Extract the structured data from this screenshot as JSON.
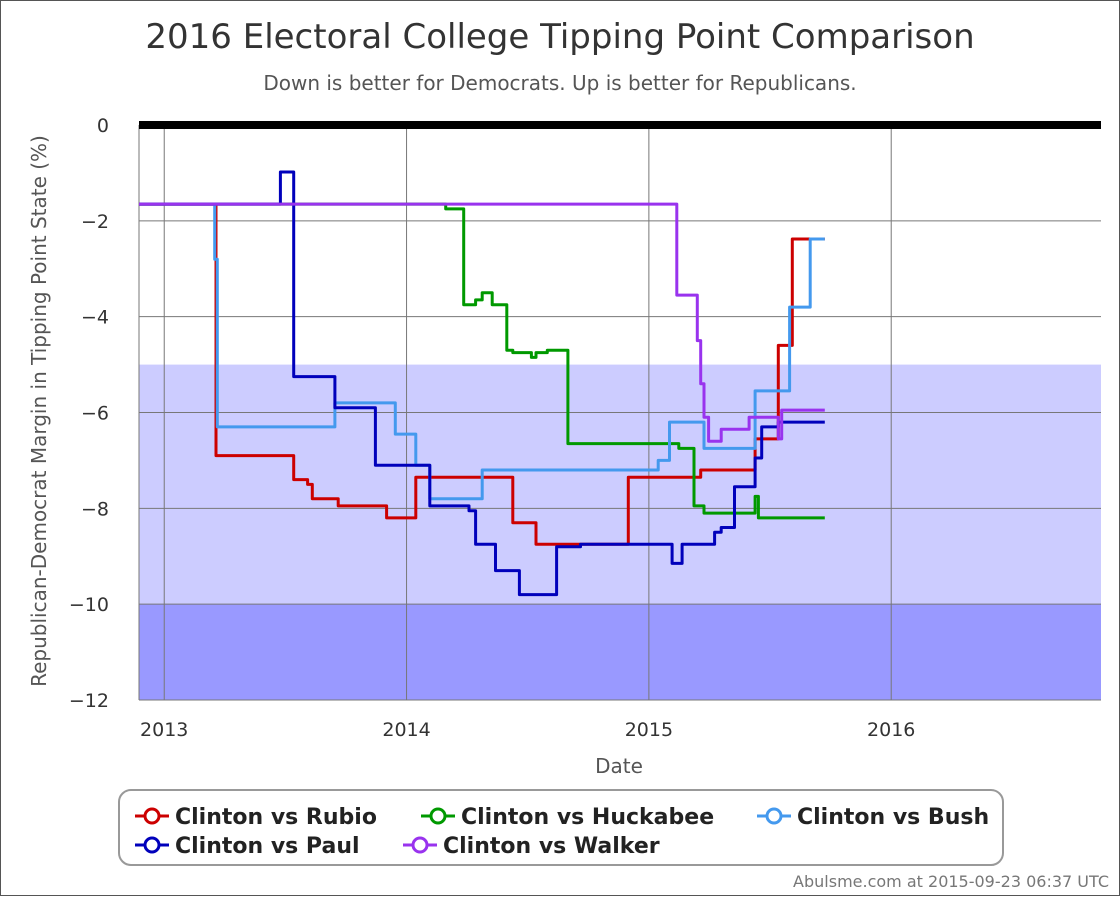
{
  "chart_data": {
    "type": "line",
    "title": "2016 Electoral College Tipping Point Comparison",
    "subtitle": "Down is better for Democrats. Up is better for Republicans.",
    "xlabel": "Date",
    "ylabel": "Republican-Democrat Margin in Tipping Point State (%)",
    "xlim": [
      "2012-11-24",
      "2016-11-12"
    ],
    "ylim": [
      -12,
      0
    ],
    "x_ticks": [
      "2013",
      "2014",
      "2015",
      "2016"
    ],
    "x_tick_dates": [
      "2013-01-01",
      "2014-01-01",
      "2015-01-01",
      "2016-01-01"
    ],
    "y_ticks": [
      0,
      -2,
      -4,
      -6,
      -8,
      -10,
      -12
    ],
    "y_tick_labels": [
      "0",
      "−2",
      "−4",
      "−6",
      "−8",
      "−10",
      "−12"
    ],
    "bands": [
      {
        "from": -5,
        "to": -10,
        "color": "#ccccff"
      },
      {
        "from": -10,
        "to": -12,
        "color": "#9999ff"
      }
    ],
    "zero_line_color": "#000000",
    "grid": true,
    "legend_position": "bottom",
    "step": true,
    "series": [
      {
        "name": "Clinton vs Rubio",
        "color": "#cc0000",
        "points": [
          [
            "2012-11-24",
            -1.65
          ],
          [
            "2013-03-20",
            -1.65
          ],
          [
            "2013-03-20",
            -6.9
          ],
          [
            "2013-07-15",
            -6.9
          ],
          [
            "2013-07-15",
            -7.4
          ],
          [
            "2013-08-05",
            -7.4
          ],
          [
            "2013-08-05",
            -7.5
          ],
          [
            "2013-08-12",
            -7.5
          ],
          [
            "2013-08-12",
            -7.8
          ],
          [
            "2013-09-20",
            -7.8
          ],
          [
            "2013-09-20",
            -7.95
          ],
          [
            "2013-12-02",
            -7.95
          ],
          [
            "2013-12-02",
            -8.2
          ],
          [
            "2014-01-15",
            -8.2
          ],
          [
            "2014-01-15",
            -7.35
          ],
          [
            "2014-06-10",
            -7.35
          ],
          [
            "2014-06-10",
            -8.3
          ],
          [
            "2014-07-15",
            -8.3
          ],
          [
            "2014-07-15",
            -8.75
          ],
          [
            "2014-12-01",
            -8.75
          ],
          [
            "2014-12-01",
            -7.35
          ],
          [
            "2015-03-20",
            -7.35
          ],
          [
            "2015-03-20",
            -7.2
          ],
          [
            "2015-06-10",
            -7.2
          ],
          [
            "2015-06-10",
            -6.55
          ],
          [
            "2015-07-15",
            -6.55
          ],
          [
            "2015-07-15",
            -4.6
          ],
          [
            "2015-08-05",
            -4.6
          ],
          [
            "2015-08-05",
            -2.38
          ],
          [
            "2015-09-23",
            -2.38
          ]
        ]
      },
      {
        "name": "Clinton vs Huckabee",
        "color": "#009900",
        "points": [
          [
            "2012-11-24",
            -1.65
          ],
          [
            "2014-03-01",
            -1.65
          ],
          [
            "2014-03-01",
            -1.75
          ],
          [
            "2014-03-28",
            -1.75
          ],
          [
            "2014-03-28",
            -3.75
          ],
          [
            "2014-04-15",
            -3.75
          ],
          [
            "2014-04-15",
            -3.65
          ],
          [
            "2014-04-25",
            -3.65
          ],
          [
            "2014-04-25",
            -3.5
          ],
          [
            "2014-05-10",
            -3.5
          ],
          [
            "2014-05-10",
            -3.75
          ],
          [
            "2014-06-01",
            -3.75
          ],
          [
            "2014-06-01",
            -4.7
          ],
          [
            "2014-06-10",
            -4.7
          ],
          [
            "2014-06-10",
            -4.75
          ],
          [
            "2014-07-08",
            -4.75
          ],
          [
            "2014-07-08",
            -4.85
          ],
          [
            "2014-07-15",
            -4.85
          ],
          [
            "2014-07-15",
            -4.75
          ],
          [
            "2014-08-01",
            -4.75
          ],
          [
            "2014-08-01",
            -4.7
          ],
          [
            "2014-09-01",
            -4.7
          ],
          [
            "2014-09-01",
            -6.65
          ],
          [
            "2015-02-15",
            -6.65
          ],
          [
            "2015-02-15",
            -6.75
          ],
          [
            "2015-03-10",
            -6.75
          ],
          [
            "2015-03-10",
            -7.95
          ],
          [
            "2015-03-25",
            -7.95
          ],
          [
            "2015-03-25",
            -8.1
          ],
          [
            "2015-06-10",
            -8.1
          ],
          [
            "2015-06-10",
            -7.75
          ],
          [
            "2015-06-15",
            -7.75
          ],
          [
            "2015-06-15",
            -8.2
          ],
          [
            "2015-09-23",
            -8.2
          ]
        ]
      },
      {
        "name": "Clinton vs Bush",
        "color": "#4499ee",
        "points": [
          [
            "2012-11-24",
            -1.65
          ],
          [
            "2013-03-18",
            -1.65
          ],
          [
            "2013-03-18",
            -2.8
          ],
          [
            "2013-03-22",
            -2.8
          ],
          [
            "2013-03-22",
            -6.3
          ],
          [
            "2013-09-15",
            -6.3
          ],
          [
            "2013-09-15",
            -5.8
          ],
          [
            "2013-12-15",
            -5.8
          ],
          [
            "2013-12-15",
            -6.45
          ],
          [
            "2014-01-15",
            -6.45
          ],
          [
            "2014-01-15",
            -7.1
          ],
          [
            "2014-02-05",
            -7.1
          ],
          [
            "2014-02-05",
            -7.8
          ],
          [
            "2014-04-25",
            -7.8
          ],
          [
            "2014-04-25",
            -7.2
          ],
          [
            "2015-01-15",
            -7.2
          ],
          [
            "2015-01-15",
            -7.0
          ],
          [
            "2015-02-01",
            -7.0
          ],
          [
            "2015-02-01",
            -6.2
          ],
          [
            "2015-03-25",
            -6.2
          ],
          [
            "2015-03-25",
            -6.75
          ],
          [
            "2015-06-10",
            -6.75
          ],
          [
            "2015-06-10",
            -5.55
          ],
          [
            "2015-08-01",
            -5.55
          ],
          [
            "2015-08-01",
            -3.8
          ],
          [
            "2015-09-01",
            -3.8
          ],
          [
            "2015-09-01",
            -2.38
          ],
          [
            "2015-09-23",
            -2.38
          ]
        ]
      },
      {
        "name": "Clinton vs Paul",
        "color": "#0000bb",
        "points": [
          [
            "2012-11-24",
            -1.65
          ],
          [
            "2013-06-25",
            -1.65
          ],
          [
            "2013-06-25",
            -0.98
          ],
          [
            "2013-07-15",
            -0.98
          ],
          [
            "2013-07-15",
            -5.25
          ],
          [
            "2013-09-15",
            -5.25
          ],
          [
            "2013-09-15",
            -5.9
          ],
          [
            "2013-11-15",
            -5.9
          ],
          [
            "2013-11-15",
            -7.1
          ],
          [
            "2014-02-05",
            -7.1
          ],
          [
            "2014-02-05",
            -7.95
          ],
          [
            "2014-04-05",
            -7.95
          ],
          [
            "2014-04-05",
            -8.05
          ],
          [
            "2014-04-15",
            -8.05
          ],
          [
            "2014-04-15",
            -8.75
          ],
          [
            "2014-05-15",
            -8.75
          ],
          [
            "2014-05-15",
            -9.3
          ],
          [
            "2014-06-20",
            -9.3
          ],
          [
            "2014-06-20",
            -9.8
          ],
          [
            "2014-08-15",
            -9.8
          ],
          [
            "2014-08-15",
            -8.8
          ],
          [
            "2014-09-20",
            -8.8
          ],
          [
            "2014-09-20",
            -8.75
          ],
          [
            "2015-01-05",
            -8.75
          ],
          [
            "2015-01-05",
            -8.75
          ],
          [
            "2015-02-05",
            -8.75
          ],
          [
            "2015-02-05",
            -9.15
          ],
          [
            "2015-02-20",
            -9.15
          ],
          [
            "2015-02-20",
            -8.75
          ],
          [
            "2015-04-10",
            -8.75
          ],
          [
            "2015-04-10",
            -8.5
          ],
          [
            "2015-04-20",
            -8.5
          ],
          [
            "2015-04-20",
            -8.4
          ],
          [
            "2015-05-10",
            -8.4
          ],
          [
            "2015-05-10",
            -7.55
          ],
          [
            "2015-06-10",
            -7.55
          ],
          [
            "2015-06-10",
            -6.95
          ],
          [
            "2015-06-20",
            -6.95
          ],
          [
            "2015-06-20",
            -6.3
          ],
          [
            "2015-07-15",
            -6.3
          ],
          [
            "2015-07-15",
            -6.2
          ],
          [
            "2015-09-23",
            -6.2
          ]
        ]
      },
      {
        "name": "Clinton vs Walker",
        "color": "#9933ee",
        "points": [
          [
            "2012-11-24",
            -1.65
          ],
          [
            "2015-02-12",
            -1.65
          ],
          [
            "2015-02-12",
            -3.55
          ],
          [
            "2015-03-15",
            -3.55
          ],
          [
            "2015-03-15",
            -4.5
          ],
          [
            "2015-03-20",
            -4.5
          ],
          [
            "2015-03-20",
            -5.4
          ],
          [
            "2015-03-25",
            -5.4
          ],
          [
            "2015-03-25",
            -6.1
          ],
          [
            "2015-04-01",
            -6.1
          ],
          [
            "2015-04-01",
            -6.6
          ],
          [
            "2015-04-20",
            -6.6
          ],
          [
            "2015-04-20",
            -6.35
          ],
          [
            "2015-06-01",
            -6.35
          ],
          [
            "2015-06-01",
            -6.1
          ],
          [
            "2015-07-15",
            -6.1
          ],
          [
            "2015-07-15",
            -6.55
          ],
          [
            "2015-07-20",
            -6.55
          ],
          [
            "2015-07-20",
            -5.95
          ],
          [
            "2015-09-23",
            -5.95
          ]
        ]
      }
    ]
  },
  "credit": "Abulsme.com at 2015-09-23 06:37 UTC"
}
